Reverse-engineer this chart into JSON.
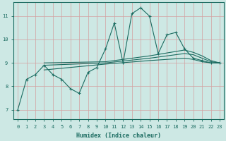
{
  "xlabel": "Humidex (Indice chaleur)",
  "bg_color": "#cde8e4",
  "line_color": "#1a6b60",
  "grid_color": "#b8d8d4",
  "xlim": [
    -0.5,
    23.5
  ],
  "ylim": [
    6.6,
    11.6
  ],
  "yticks": [
    7,
    8,
    9,
    10,
    11
  ],
  "xticks": [
    0,
    1,
    2,
    3,
    4,
    5,
    6,
    7,
    8,
    9,
    10,
    11,
    12,
    13,
    14,
    15,
    16,
    17,
    18,
    19,
    20,
    21,
    22,
    23
  ],
  "series": [
    {
      "x": [
        0,
        1,
        2,
        3,
        4,
        5,
        6,
        7,
        8,
        9,
        10,
        11,
        12,
        13,
        14,
        15,
        16,
        17,
        18,
        19,
        20,
        21,
        22,
        23
      ],
      "y": [
        7.0,
        8.3,
        8.5,
        8.9,
        8.5,
        8.3,
        7.9,
        7.7,
        8.6,
        8.8,
        9.6,
        10.7,
        9.0,
        11.1,
        11.35,
        11.0,
        9.4,
        10.2,
        10.3,
        9.6,
        9.2,
        9.1,
        9.0,
        9.0
      ],
      "marker": true
    },
    {
      "x": [
        3,
        10,
        15,
        19,
        20,
        21,
        22,
        23
      ],
      "y": [
        9.0,
        9.05,
        9.3,
        9.55,
        9.45,
        9.3,
        9.1,
        9.0
      ],
      "marker": false
    },
    {
      "x": [
        3,
        10,
        15,
        19,
        20,
        21,
        22,
        23
      ],
      "y": [
        8.9,
        9.0,
        9.2,
        9.4,
        9.35,
        9.2,
        9.05,
        9.0
      ],
      "marker": false
    },
    {
      "x": [
        3,
        10,
        15,
        19,
        20,
        21,
        22,
        23
      ],
      "y": [
        8.7,
        8.95,
        9.1,
        9.2,
        9.15,
        9.05,
        9.0,
        9.0
      ],
      "marker": false
    }
  ]
}
